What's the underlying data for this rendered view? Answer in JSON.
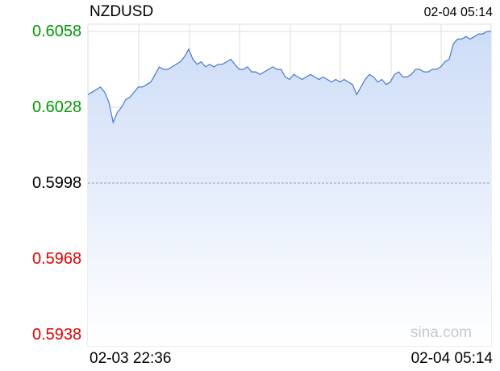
{
  "header": {
    "symbol": "NZDUSD",
    "timestamp": "02-04 05:14"
  },
  "watermark": "sina.com",
  "colors": {
    "up": "#009900",
    "down": "#e60000",
    "neutral": "#000000",
    "line": "#4a78c8",
    "fill_top": "#cddcf7",
    "fill_bottom": "#ffffff",
    "grid": "#dddddd",
    "baseline": "#9aa0b8"
  },
  "chart_data": {
    "type": "area",
    "title": "NZDUSD",
    "xlabel": "",
    "ylabel": "",
    "ylim": [
      0.5938,
      0.6058
    ],
    "reference_price": 0.5998,
    "grid": true,
    "y_ticks": [
      "0.6058",
      "0.6028",
      "0.5998",
      "0.5968",
      "0.5938"
    ],
    "x_ticks": [
      "02-03 22:36",
      "02-04 05:14"
    ],
    "series": [
      {
        "values": [
          0.6033,
          0.6034,
          0.6035,
          0.6036,
          0.6034,
          0.603,
          0.6022,
          0.6026,
          0.6028,
          0.6031,
          0.6032,
          0.6034,
          0.6036,
          0.6036,
          0.6037,
          0.6038,
          0.6041,
          0.6044,
          0.6043,
          0.6043,
          0.6044,
          0.6045,
          0.6046,
          0.6048,
          0.6051,
          0.6047,
          0.6045,
          0.6046,
          0.6044,
          0.6045,
          0.6044,
          0.6045,
          0.6045,
          0.6046,
          0.6047,
          0.6045,
          0.6043,
          0.6043,
          0.6044,
          0.6042,
          0.6042,
          0.6041,
          0.6042,
          0.6043,
          0.6044,
          0.6043,
          0.6043,
          0.604,
          0.6039,
          0.6041,
          0.604,
          0.6039,
          0.604,
          0.6041,
          0.604,
          0.6039,
          0.604,
          0.6039,
          0.6038,
          0.6039,
          0.6038,
          0.6039,
          0.6038,
          0.6037,
          0.6033,
          0.6036,
          0.6039,
          0.6041,
          0.604,
          0.6038,
          0.6039,
          0.6037,
          0.6038,
          0.6041,
          0.6042,
          0.604,
          0.604,
          0.6041,
          0.6043,
          0.6043,
          0.6042,
          0.6042,
          0.6043,
          0.6043,
          0.6044,
          0.6046,
          0.6047,
          0.6053,
          0.6055,
          0.6055,
          0.6056,
          0.6055,
          0.6056,
          0.6057,
          0.6057,
          0.6058,
          0.6058
        ]
      }
    ]
  }
}
